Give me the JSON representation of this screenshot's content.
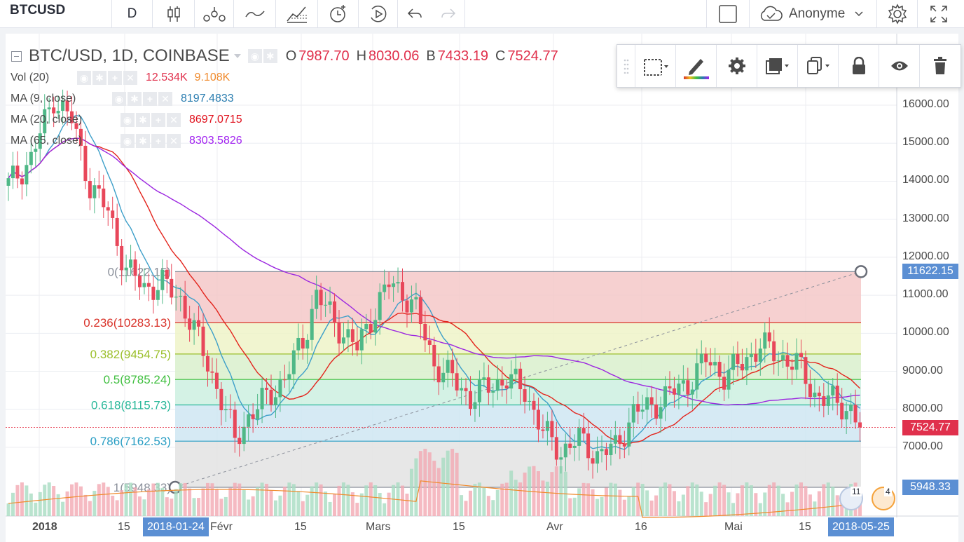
{
  "toolbar": {
    "symbol": "BTCUSD",
    "interval": "D",
    "user": "Anonyme",
    "icons": [
      "candles-icon",
      "indicators-icon",
      "compare-icon",
      "templates-icon",
      "alert-icon",
      "replay-icon",
      "undo-icon",
      "redo-icon",
      "square-icon",
      "cloud-icon",
      "settings-icon",
      "fullscreen-icon"
    ]
  },
  "legend": {
    "title": "BTC/USD, 1D, COINBASE",
    "ohlc": [
      {
        "label": "O",
        "value": "7987.70"
      },
      {
        "label": "H",
        "value": "8030.06"
      },
      {
        "label": "B",
        "value": "7433.19"
      },
      {
        "label": "C",
        "value": "7524.77"
      }
    ],
    "indicators": [
      {
        "name": "Vol (20)",
        "values": [
          {
            "v": "12.534K",
            "color": "#e0304c"
          },
          {
            "v": "9.108K",
            "color": "#f08a2c"
          }
        ]
      },
      {
        "name": "MA (9, close)",
        "values": [
          {
            "v": "8197.4833",
            "color": "#2a7db0"
          }
        ]
      },
      {
        "name": "MA (20, close)",
        "values": [
          {
            "v": "8697.0715",
            "color": "#e0101c"
          }
        ]
      },
      {
        "name": "MA (65, close)",
        "values": [
          {
            "v": "8303.5826",
            "color": "#a020f0"
          }
        ]
      }
    ]
  },
  "fib": {
    "levels": [
      {
        "label": "0(11622.15)",
        "price": 11622.15,
        "color": "#8a8f9a",
        "fill": "#f4c8c8"
      },
      {
        "label": "0.236(10283.13)",
        "price": 10283.13,
        "color": "#d9342b",
        "fill": "#eef3c8"
      },
      {
        "label": "0.382(9454.75)",
        "price": 9454.75,
        "color": "#9bbf2a",
        "fill": "#d9f0cc"
      },
      {
        "label": "0.5(8785.24)",
        "price": 8785.24,
        "color": "#3fbf3f",
        "fill": "#ccf0e0"
      },
      {
        "label": "0.618(8115.73)",
        "price": 8115.73,
        "color": "#2ab89a",
        "fill": "#cfe6f2"
      },
      {
        "label": "0.786(7162.53)",
        "price": 7162.53,
        "color": "#2a9ec4",
        "fill": "#e3e3e3"
      },
      {
        "label": "1(5948.33)",
        "price": 5948.33,
        "color": "#8a8f9a",
        "fill": ""
      }
    ]
  },
  "price_axis": {
    "ticks": [
      "16000.00",
      "15000.00",
      "14000.00",
      "13000.00",
      "12000.00",
      "11000.00",
      "10000.00",
      "9000.00",
      "8000.00",
      "7000.00"
    ],
    "labels": [
      {
        "value": "11622.15",
        "color": "#5b8fd3"
      },
      {
        "value": "7524.77",
        "color": "#e0304c"
      },
      {
        "value": "5948.33",
        "color": "#5b8fd3"
      }
    ]
  },
  "time_axis": {
    "labels": [
      "2018",
      "15",
      "Févr",
      "15",
      "Mars",
      "15",
      "Avr",
      "16",
      "Mai",
      "15"
    ],
    "highlight_start": "2018-01-24",
    "highlight_end": "2018-05-25"
  },
  "badges": {
    "count_a": "11",
    "count_b": "4"
  },
  "chart_data": {
    "type": "candlestick",
    "current_price": 7524.77,
    "ylim": [
      5800,
      17000
    ],
    "colors": {
      "up": "#4fb887",
      "down": "#e8475a",
      "ma9": "#3d9fc9",
      "ma20": "#e3241c",
      "ma65": "#9c27e0",
      "vol_ma": "#f08a2c"
    }
  }
}
